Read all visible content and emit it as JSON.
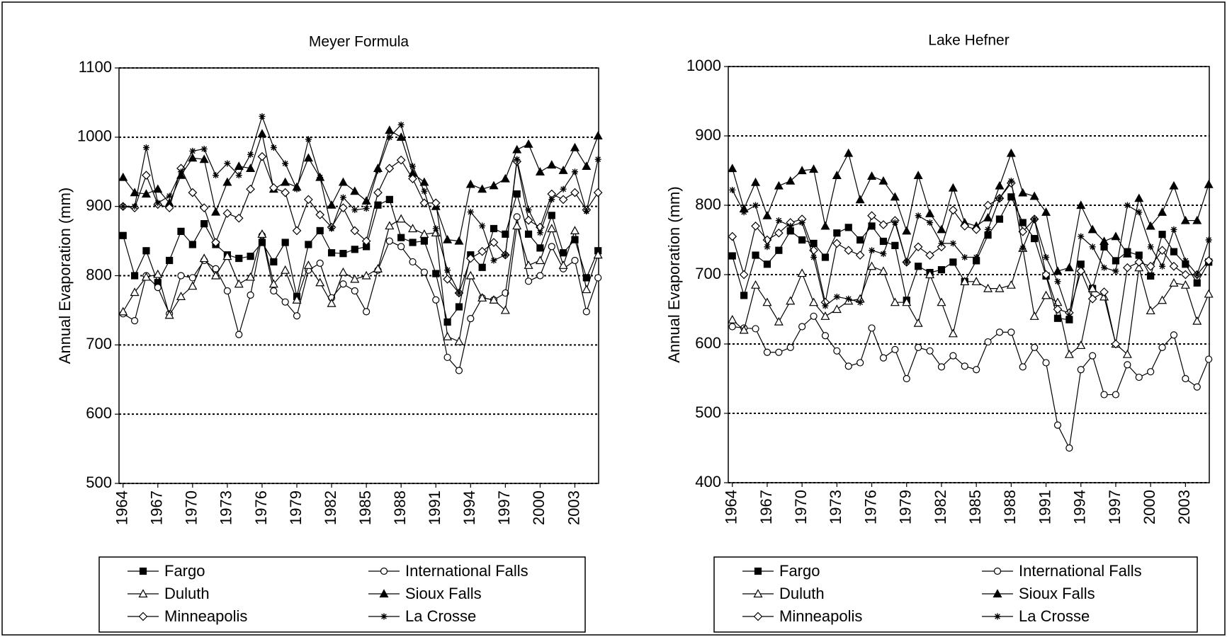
{
  "chart_data": [
    {
      "type": "line",
      "title": "Meyer Formula",
      "y_label": "Annual Evaporation (mm)",
      "x": [
        1964,
        1965,
        1966,
        1967,
        1968,
        1969,
        1970,
        1971,
        1972,
        1973,
        1974,
        1975,
        1976,
        1977,
        1978,
        1979,
        1980,
        1981,
        1982,
        1983,
        1984,
        1985,
        1986,
        1987,
        1988,
        1989,
        1990,
        1991,
        1992,
        1993,
        1994,
        1995,
        1996,
        1997,
        1998,
        1999,
        2000,
        2001,
        2002,
        2003,
        2004,
        2005
      ],
      "xlim": [
        1963.65,
        2005.05
      ],
      "xticks": [
        1964,
        1967,
        1970,
        1973,
        1976,
        1979,
        1982,
        1985,
        1988,
        1991,
        1994,
        1997,
        2000,
        2003
      ],
      "ylim": [
        500,
        1100
      ],
      "yticks": [
        500,
        600,
        700,
        800,
        900,
        1000,
        1100
      ],
      "grid": true,
      "legend": "bottom",
      "series": [
        {
          "name": "Fargo",
          "color": "#000000",
          "marker": "square-filled",
          "values": [
            858,
            800,
            836,
            790,
            822,
            864,
            845,
            875,
            845,
            830,
            825,
            828,
            848,
            820,
            848,
            770,
            845,
            865,
            833,
            832,
            838,
            842,
            902,
            910,
            855,
            848,
            850,
            803,
            733,
            755,
            830,
            812,
            868,
            860,
            918,
            860,
            840,
            887,
            833,
            852,
            797,
            836
          ]
        },
        {
          "name": "International Falls",
          "color": "#000000",
          "marker": "circle-open",
          "values": [
            745,
            735,
            800,
            783,
            745,
            800,
            797,
            822,
            810,
            778,
            715,
            772,
            858,
            778,
            762,
            742,
            808,
            818,
            768,
            788,
            778,
            748,
            808,
            850,
            842,
            820,
            805,
            765,
            682,
            663,
            738,
            768,
            765,
            775,
            885,
            792,
            800,
            842,
            810,
            822,
            748,
            797
          ]
        },
        {
          "name": "Duluth",
          "color": "#000000",
          "marker": "triangle-open",
          "values": [
            748,
            776,
            798,
            802,
            743,
            770,
            785,
            825,
            800,
            828,
            788,
            798,
            860,
            788,
            808,
            765,
            815,
            790,
            760,
            805,
            795,
            800,
            810,
            872,
            882,
            868,
            860,
            862,
            712,
            705,
            800,
            768,
            765,
            750,
            872,
            815,
            822,
            868,
            815,
            865,
            780,
            830
          ]
        },
        {
          "name": "Sioux Falls",
          "color": "#000000",
          "marker": "triangle-filled",
          "values": [
            942,
            920,
            918,
            925,
            905,
            945,
            970,
            968,
            892,
            935,
            958,
            955,
            1005,
            925,
            935,
            928,
            970,
            942,
            902,
            935,
            922,
            908,
            955,
            1010,
            1000,
            948,
            935,
            900,
            852,
            850,
            932,
            925,
            930,
            940,
            982,
            990,
            950,
            960,
            952,
            985,
            958,
            1002
          ]
        },
        {
          "name": "Minneapolis",
          "color": "#000000",
          "marker": "diamond-open",
          "values": [
            900,
            898,
            945,
            903,
            898,
            955,
            920,
            898,
            848,
            890,
            883,
            925,
            972,
            927,
            920,
            865,
            910,
            888,
            870,
            898,
            865,
            850,
            920,
            955,
            967,
            940,
            905,
            905,
            795,
            775,
            825,
            835,
            848,
            830,
            965,
            880,
            870,
            918,
            910,
            920,
            895,
            920
          ]
        },
        {
          "name": "La Crosse",
          "color": "#000000",
          "marker": "star",
          "values": [
            900,
            900,
            985,
            905,
            915,
            950,
            980,
            983,
            945,
            962,
            945,
            975,
            1030,
            985,
            962,
            925,
            997,
            942,
            868,
            913,
            895,
            897,
            952,
            1000,
            1018,
            958,
            922,
            868,
            808,
            775,
            892,
            872,
            822,
            830,
            968,
            895,
            862,
            910,
            925,
            950,
            893,
            968
          ]
        }
      ]
    },
    {
      "type": "line",
      "title": "Lake Hefner",
      "y_label": "Annual Evaporation (mm)",
      "x": [
        1964,
        1965,
        1966,
        1967,
        1968,
        1969,
        1970,
        1971,
        1972,
        1973,
        1974,
        1975,
        1976,
        1977,
        1978,
        1979,
        1980,
        1981,
        1982,
        1983,
        1984,
        1985,
        1986,
        1987,
        1988,
        1989,
        1990,
        1991,
        1992,
        1993,
        1994,
        1995,
        1996,
        1997,
        1998,
        1999,
        2000,
        2001,
        2002,
        2003,
        2004,
        2005
      ],
      "xlim": [
        1963.65,
        2005.05
      ],
      "xticks": [
        1964,
        1967,
        1970,
        1973,
        1976,
        1979,
        1982,
        1985,
        1988,
        1991,
        1994,
        1997,
        2000,
        2003
      ],
      "ylim": [
        400,
        1000
      ],
      "yticks": [
        400,
        500,
        600,
        700,
        800,
        900,
        1000
      ],
      "grid": true,
      "legend": "bottom",
      "series": [
        {
          "name": "Fargo",
          "color": "#000000",
          "marker": "square-filled",
          "values": [
            727,
            670,
            728,
            715,
            735,
            763,
            750,
            745,
            725,
            760,
            768,
            750,
            770,
            748,
            742,
            663,
            712,
            703,
            707,
            718,
            690,
            720,
            757,
            780,
            812,
            775,
            752,
            698,
            637,
            635,
            715,
            680,
            740,
            720,
            733,
            728,
            698,
            758,
            733,
            715,
            688,
            718
          ]
        },
        {
          "name": "International Falls",
          "color": "#000000",
          "marker": "circle-open",
          "values": [
            625,
            623,
            622,
            588,
            588,
            595,
            625,
            640,
            612,
            590,
            568,
            573,
            623,
            580,
            592,
            550,
            595,
            590,
            567,
            583,
            568,
            563,
            603,
            617,
            617,
            567,
            595,
            573,
            483,
            450,
            563,
            583,
            527,
            527,
            570,
            552,
            560,
            595,
            613,
            550,
            538,
            578
          ]
        },
        {
          "name": "Duluth",
          "color": "#000000",
          "marker": "triangle-open",
          "values": [
            635,
            620,
            685,
            660,
            632,
            662,
            702,
            660,
            640,
            650,
            662,
            665,
            712,
            705,
            660,
            660,
            630,
            700,
            660,
            615,
            690,
            690,
            680,
            680,
            685,
            738,
            640,
            670,
            660,
            585,
            598,
            680,
            668,
            600,
            585,
            710,
            648,
            663,
            688,
            685,
            633,
            672
          ]
        },
        {
          "name": "Sioux Falls",
          "color": "#000000",
          "marker": "triangle-filled",
          "values": [
            853,
            795,
            833,
            785,
            828,
            835,
            850,
            852,
            770,
            843,
            875,
            808,
            842,
            835,
            812,
            763,
            843,
            788,
            765,
            825,
            775,
            770,
            782,
            828,
            875,
            818,
            813,
            790,
            705,
            710,
            800,
            765,
            748,
            755,
            730,
            810,
            770,
            790,
            828,
            778,
            778,
            830
          ]
        },
        {
          "name": "Minneapolis",
          "color": "#000000",
          "marker": "diamond-open",
          "values": [
            755,
            700,
            770,
            750,
            760,
            775,
            780,
            735,
            660,
            745,
            735,
            728,
            785,
            772,
            778,
            718,
            740,
            728,
            740,
            793,
            770,
            765,
            800,
            810,
            832,
            762,
            780,
            700,
            650,
            645,
            705,
            665,
            675,
            600,
            710,
            718,
            712,
            735,
            712,
            700,
            700,
            720
          ]
        },
        {
          "name": "La Crosse",
          "color": "#000000",
          "marker": "star",
          "values": [
            822,
            790,
            800,
            740,
            778,
            770,
            775,
            725,
            655,
            668,
            665,
            660,
            735,
            730,
            775,
            718,
            785,
            775,
            745,
            745,
            725,
            725,
            765,
            810,
            835,
            738,
            780,
            725,
            690,
            640,
            755,
            740,
            710,
            705,
            800,
            790,
            740,
            712,
            765,
            720,
            700,
            750
          ]
        }
      ]
    }
  ]
}
